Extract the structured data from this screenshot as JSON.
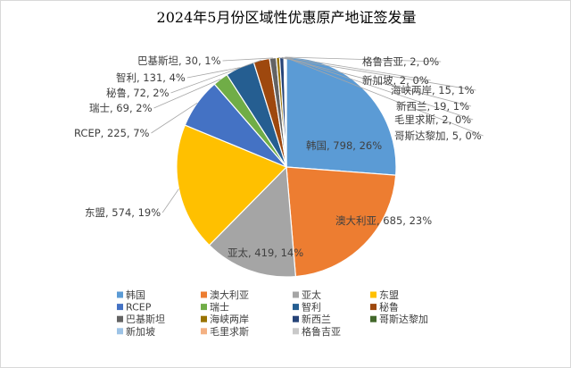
{
  "chart_data": {
    "type": "pie",
    "title": "2024年5月份区域性优惠原产地证签发量",
    "legend_position": "bottom",
    "slices": [
      {
        "label": "韩国",
        "value": 798,
        "percent": "26%",
        "color": "#5B9BD5"
      },
      {
        "label": "澳大利亚",
        "value": 685,
        "percent": "23%",
        "color": "#ED7D31"
      },
      {
        "label": "亚太",
        "value": 419,
        "percent": "14%",
        "color": "#A5A5A5"
      },
      {
        "label": "东盟",
        "value": 574,
        "percent": "19%",
        "color": "#FFC000"
      },
      {
        "label": "RCEP",
        "value": 225,
        "percent": "7%",
        "color": "#4472C4"
      },
      {
        "label": "瑞士",
        "value": 69,
        "percent": "2%",
        "color": "#70AD47"
      },
      {
        "label": "智利",
        "value": 131,
        "percent": "4%",
        "color": "#255E91"
      },
      {
        "label": "秘鲁",
        "value": 72,
        "percent": "2%",
        "color": "#9E480E"
      },
      {
        "label": "巴基斯坦",
        "value": 30,
        "percent": "1%",
        "color": "#636363"
      },
      {
        "label": "海峡两岸",
        "value": 15,
        "percent": "1%",
        "color": "#997300"
      },
      {
        "label": "新西兰",
        "value": 19,
        "percent": "1%",
        "color": "#264478"
      },
      {
        "label": "哥斯达黎加",
        "value": 5,
        "percent": "0%",
        "color": "#43682B"
      },
      {
        "label": "新加坡",
        "value": 2,
        "percent": "0%",
        "color": "#9DC3E6"
      },
      {
        "label": "毛里求斯",
        "value": 2,
        "percent": "0%",
        "color": "#F4B183"
      },
      {
        "label": "格鲁吉亚",
        "value": 2,
        "percent": "0%",
        "color": "#C9C9C9"
      }
    ]
  }
}
